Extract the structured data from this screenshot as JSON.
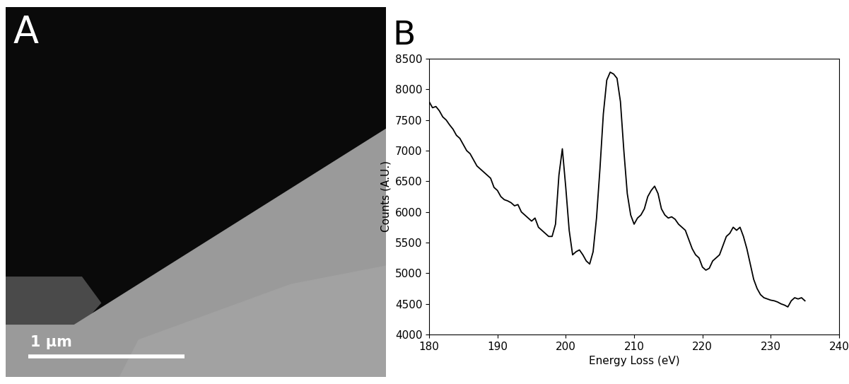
{
  "panels": {
    "A": {
      "label": "A",
      "scale_bar": "1 µm"
    },
    "B": {
      "label": "B"
    }
  },
  "chart_data": {
    "type": "line",
    "x_label": "Energy Loss (eV)",
    "y_label": "Counts (A.U.)",
    "color": "#000000",
    "grid": false,
    "xlim": [
      180,
      240
    ],
    "xticks": [
      180,
      190,
      200,
      210,
      220,
      230,
      240
    ],
    "ylim": [
      4000,
      8500
    ],
    "yticks": [
      4000,
      4500,
      5000,
      5500,
      6000,
      6500,
      7000,
      7500,
      8000,
      8500
    ],
    "x": [
      180,
      180.5,
      181,
      181.5,
      182,
      182.5,
      183,
      183.5,
      184,
      184.5,
      185,
      185.5,
      186,
      186.5,
      187,
      187.5,
      188,
      188.5,
      189,
      189.5,
      190,
      190.5,
      191,
      191.5,
      192,
      192.5,
      193,
      193.5,
      194,
      194.5,
      195,
      195.5,
      196,
      196.5,
      197,
      197.5,
      198,
      198.5,
      199,
      199.5,
      200,
      200.5,
      201,
      201.5,
      202,
      202.5,
      203,
      203.5,
      204,
      204.5,
      205,
      205.5,
      206,
      206.5,
      207,
      207.5,
      208,
      208.5,
      209,
      209.5,
      210,
      210.5,
      211,
      211.5,
      212,
      212.5,
      213,
      213.5,
      214,
      214.5,
      215,
      215.5,
      216,
      216.5,
      217,
      217.5,
      218,
      218.5,
      219,
      219.5,
      220,
      220.5,
      221,
      221.5,
      222,
      222.5,
      223,
      223.5,
      224,
      224.5,
      225,
      225.5,
      226,
      226.5,
      227,
      227.5,
      228,
      228.5,
      229,
      229.5,
      230,
      230.5,
      231,
      231.5,
      232,
      232.5,
      233,
      233.5,
      234,
      234.5,
      235
    ],
    "values": [
      7800,
      7700,
      7720,
      7650,
      7550,
      7500,
      7420,
      7350,
      7250,
      7200,
      7100,
      7000,
      6950,
      6850,
      6750,
      6700,
      6650,
      6600,
      6550,
      6400,
      6350,
      6250,
      6200,
      6180,
      6150,
      6100,
      6120,
      6000,
      5950,
      5900,
      5850,
      5900,
      5750,
      5700,
      5650,
      5600,
      5600,
      5800,
      6600,
      7030,
      6400,
      5700,
      5300,
      5350,
      5380,
      5300,
      5200,
      5150,
      5350,
      5900,
      6700,
      7600,
      8150,
      8280,
      8250,
      8180,
      7800,
      7000,
      6300,
      5950,
      5800,
      5900,
      5950,
      6050,
      6250,
      6350,
      6420,
      6300,
      6050,
      5950,
      5900,
      5920,
      5880,
      5800,
      5750,
      5700,
      5550,
      5400,
      5300,
      5250,
      5100,
      5050,
      5080,
      5200,
      5250,
      5300,
      5450,
      5600,
      5650,
      5750,
      5700,
      5750,
      5600,
      5400,
      5150,
      4900,
      4750,
      4650,
      4600,
      4580,
      4560,
      4550,
      4530,
      4500,
      4480,
      4450,
      4550,
      4600,
      4580,
      4600,
      4550
    ]
  }
}
